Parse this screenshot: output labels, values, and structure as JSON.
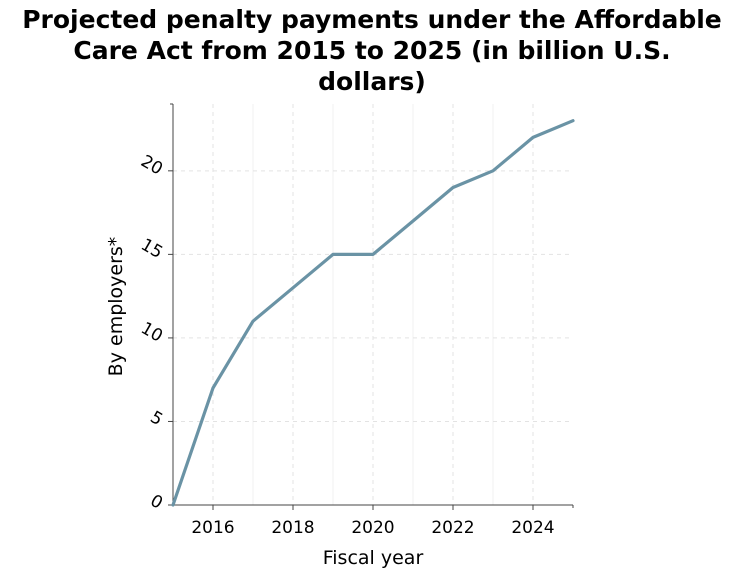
{
  "chart_data": {
    "type": "line",
    "title_lines": [
      "Projected penalty payments under the Affordable",
      "Care Act from 2015 to 2025 (in billion U.S.",
      "dollars)"
    ],
    "xlabel": "Fiscal year",
    "ylabel": "By employers*",
    "x": [
      2015,
      2016,
      2017,
      2018,
      2019,
      2020,
      2021,
      2022,
      2023,
      2024,
      2025
    ],
    "series": [
      {
        "values": [
          0,
          7,
          11,
          13,
          15,
          15,
          17,
          19,
          20,
          22,
          23
        ]
      }
    ],
    "xlim": [
      2015,
      2025
    ],
    "ylim": [
      0,
      24
    ],
    "xticks": [
      2016,
      2018,
      2020,
      2022,
      2024
    ],
    "yticks": [
      0,
      5,
      10,
      15,
      20
    ],
    "grid": true,
    "line_color": "#6a93a5",
    "grid_color": "#e3e3e3"
  }
}
